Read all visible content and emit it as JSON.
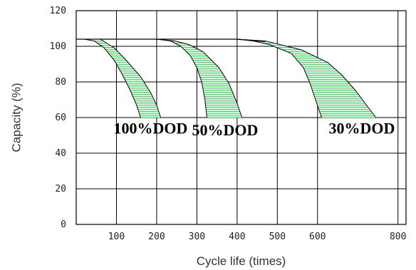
{
  "chart_data": {
    "type": "area",
    "title": "",
    "xlabel": "Cycle life (times)",
    "ylabel": "Capacity (%)",
    "xlim": [
      0,
      820
    ],
    "ylim": [
      0,
      120
    ],
    "x_ticks": [
      100,
      200,
      300,
      400,
      500,
      600,
      800
    ],
    "y_ticks": [
      0,
      20,
      40,
      60,
      80,
      100,
      120
    ],
    "grid": true,
    "band_fill": "#22cc44",
    "series": [
      {
        "name": "100%DOD",
        "upper": [
          [
            20,
            104
          ],
          [
            60,
            104
          ],
          [
            95,
            99
          ],
          [
            125,
            92
          ],
          [
            160,
            83
          ],
          [
            185,
            74
          ],
          [
            200,
            67
          ],
          [
            210,
            60
          ]
        ],
        "lower": [
          [
            20,
            104
          ],
          [
            45,
            103
          ],
          [
            70,
            99
          ],
          [
            95,
            92
          ],
          [
            115,
            84
          ],
          [
            135,
            75
          ],
          [
            150,
            67
          ],
          [
            160,
            60
          ]
        ]
      },
      {
        "name": "50%DOD",
        "upper": [
          [
            200,
            104
          ],
          [
            245,
            103
          ],
          [
            280,
            101
          ],
          [
            315,
            97
          ],
          [
            355,
            88
          ],
          [
            380,
            79
          ],
          [
            400,
            68
          ],
          [
            412,
            60
          ]
        ],
        "lower": [
          [
            200,
            104
          ],
          [
            235,
            103
          ],
          [
            260,
            100
          ],
          [
            283,
            95
          ],
          [
            300,
            88
          ],
          [
            312,
            80
          ],
          [
            320,
            70
          ],
          [
            325,
            60
          ]
        ]
      },
      {
        "name": "30%DOD",
        "upper": [
          [
            400,
            104
          ],
          [
            470,
            103
          ],
          [
            560,
            98
          ],
          [
            625,
            91
          ],
          [
            660,
            84
          ],
          [
            695,
            75
          ],
          [
            725,
            66
          ],
          [
            745,
            60
          ]
        ],
        "lower": [
          [
            400,
            104
          ],
          [
            440,
            103
          ],
          [
            480,
            101
          ],
          [
            535,
            96
          ],
          [
            565,
            88
          ],
          [
            580,
            80
          ],
          [
            595,
            70
          ],
          [
            610,
            60
          ]
        ]
      }
    ],
    "annotations": [
      {
        "text": "100%DOD",
        "x": 185,
        "y": 51
      },
      {
        "text": "50%DOD",
        "x": 370,
        "y": 50
      },
      {
        "text": "30%DOD",
        "x": 710,
        "y": 51
      }
    ]
  }
}
